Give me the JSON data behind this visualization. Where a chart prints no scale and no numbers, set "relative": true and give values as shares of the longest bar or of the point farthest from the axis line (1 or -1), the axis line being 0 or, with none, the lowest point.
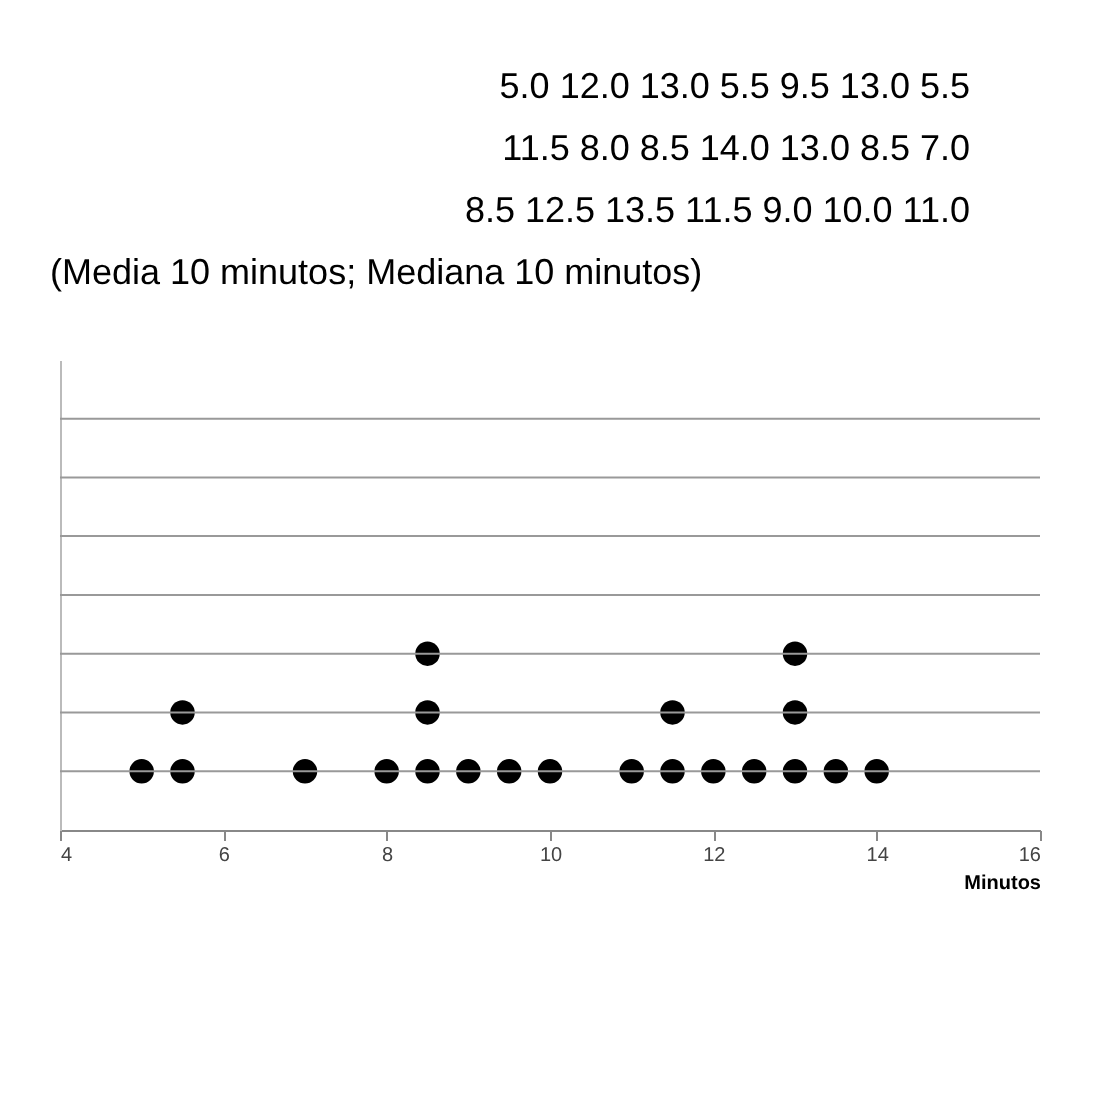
{
  "chart_data": {
    "type": "scatter",
    "annotations": [
      "5.0  12.0  13.0    5.5    9.5  13.0    5.5",
      "11.5    8.0    8.5  14.0  13.0    8.5    7.0",
      "8.5  12.5  13.5  11.5    9.0  10.0  11.0",
      "(Media 10 minutos; Mediana 10 minutos)"
    ],
    "xlabel": "Minutos",
    "series": [
      {
        "color": "#000000",
        "x": [
          5,
          5.5,
          5.5,
          7,
          8,
          8.5,
          8.5,
          8.5,
          9,
          9.5,
          10,
          11,
          11.5,
          11.5,
          12,
          12.5,
          13,
          13,
          13,
          13.5,
          14
        ],
        "values": [
          0.333,
          0.333,
          0.667,
          0.333,
          0.333,
          0.333,
          0.667,
          1,
          0.333,
          0.333,
          0.333,
          0.333,
          0.333,
          0.667,
          0.333,
          0.333,
          0.333,
          0.667,
          1,
          0.333,
          0.333
        ]
      }
    ],
    "relative": true,
    "xlim": [
      4,
      16
    ],
    "xticks": [
      4,
      6,
      8,
      10,
      12,
      14,
      16
    ],
    "ref_lines": [
      {
        "axis": "y",
        "value": 0.333,
        "color": "#999999"
      },
      {
        "axis": "y",
        "value": 0.667,
        "color": "#999999"
      },
      {
        "axis": "y",
        "value": 1,
        "color": "#999999"
      },
      {
        "axis": "y",
        "value": 1.333,
        "color": "#999999"
      },
      {
        "axis": "y",
        "value": 1.667,
        "color": "#999999"
      },
      {
        "axis": "y",
        "value": 2,
        "color": "#999999"
      },
      {
        "axis": "y",
        "value": 2.333,
        "color": "#999999"
      }
    ],
    "tick_labels": "x",
    "marker": "circle"
  }
}
